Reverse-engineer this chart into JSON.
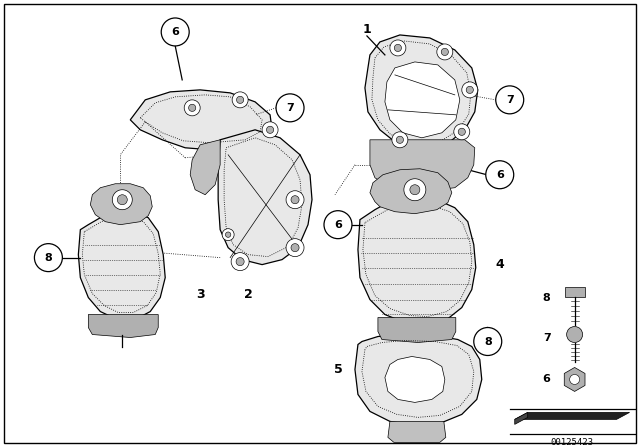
{
  "background_color": "#ffffff",
  "fig_width": 6.4,
  "fig_height": 4.48,
  "dpi": 100,
  "diagram_id": "00125423",
  "lw_main": 0.9,
  "lw_dash": 0.6,
  "lw_thin": 0.5,
  "gray_fill": "#e8e8e8",
  "dark_fill": "#b0b0b0",
  "white_fill": "#ffffff",
  "mid_gray": "#c0c0c0"
}
